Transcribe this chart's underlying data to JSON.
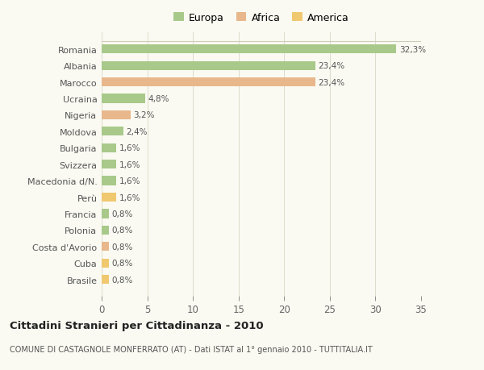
{
  "categories": [
    "Romania",
    "Albania",
    "Marocco",
    "Ucraina",
    "Nigeria",
    "Moldova",
    "Bulgaria",
    "Svizzera",
    "Macedonia d/N.",
    "Perù",
    "Francia",
    "Polonia",
    "Costa d'Avorio",
    "Cuba",
    "Brasile"
  ],
  "values": [
    32.3,
    23.4,
    23.4,
    4.8,
    3.2,
    2.4,
    1.6,
    1.6,
    1.6,
    1.6,
    0.8,
    0.8,
    0.8,
    0.8,
    0.8
  ],
  "colors": [
    "#a8c98a",
    "#a8c98a",
    "#e8b88c",
    "#a8c98a",
    "#e8b88c",
    "#a8c98a",
    "#a8c98a",
    "#a8c98a",
    "#a8c98a",
    "#f0c870",
    "#a8c98a",
    "#a8c98a",
    "#e8b88c",
    "#f0c870",
    "#f0c870"
  ],
  "labels": [
    "32,3%",
    "23,4%",
    "23,4%",
    "4,8%",
    "3,2%",
    "2,4%",
    "1,6%",
    "1,6%",
    "1,6%",
    "1,6%",
    "0,8%",
    "0,8%",
    "0,8%",
    "0,8%",
    "0,8%"
  ],
  "legend": [
    {
      "label": "Europa",
      "color": "#a8c98a"
    },
    {
      "label": "Africa",
      "color": "#e8b88c"
    },
    {
      "label": "America",
      "color": "#f0c870"
    }
  ],
  "xlim": [
    0,
    35
  ],
  "xticks": [
    0,
    5,
    10,
    15,
    20,
    25,
    30,
    35
  ],
  "title": "Cittadini Stranieri per Cittadinanza - 2010",
  "subtitle": "COMUNE DI CASTAGNOLE MONFERRATO (AT) - Dati ISTAT al 1° gennaio 2010 - TUTTITALIA.IT",
  "background_color": "#fafaf2",
  "grid_color": "#ddddcc",
  "bar_height": 0.55
}
